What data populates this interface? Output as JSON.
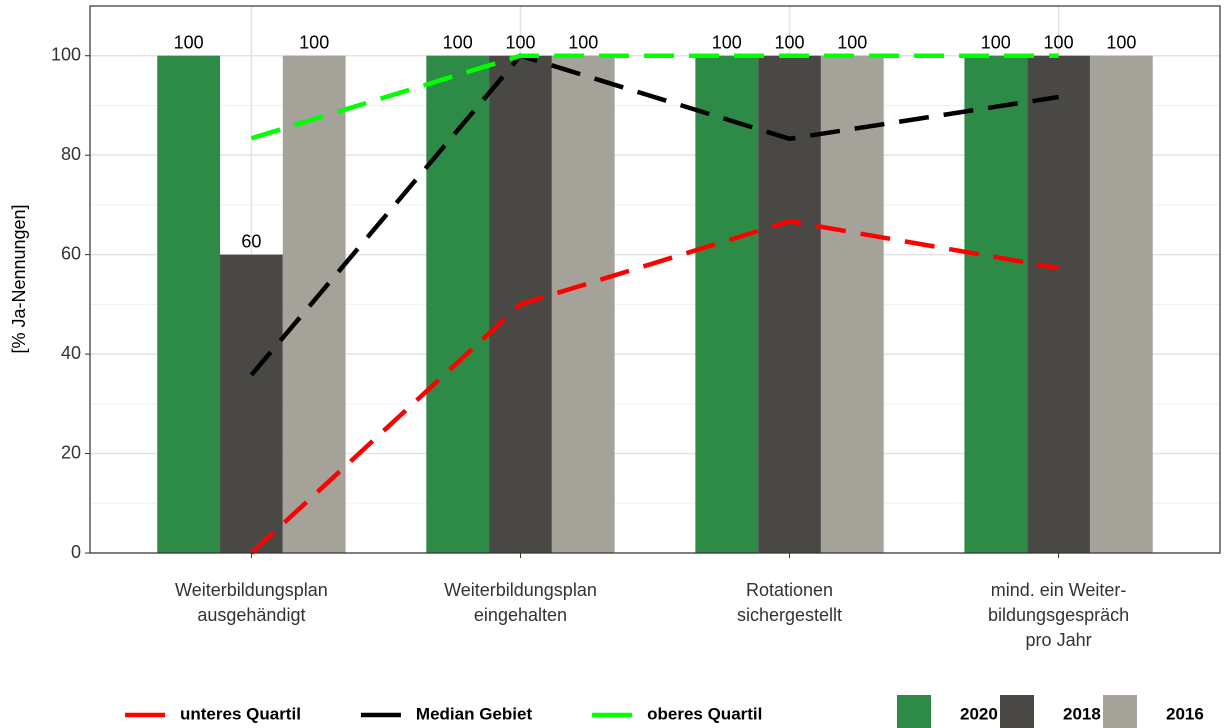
{
  "chart_data": {
    "type": "bar",
    "y_label": "[% Ja-Nennungen]",
    "categories": [
      "Weiterbildungsplan\nausgehändigt",
      "Weiterbildungsplan\neingehalten",
      "Rotationen\nsichergestellt",
      "mind. ein Weiter-\nbildungsgespräch\npro Jahr"
    ],
    "series": [
      {
        "name": "2020",
        "color": "#2e8b47",
        "type": "bar",
        "values": [
          100,
          100,
          100,
          100
        ]
      },
      {
        "name": "2018",
        "color": "#4a4845",
        "type": "bar",
        "values": [
          60,
          100,
          100,
          100
        ]
      },
      {
        "name": "2016",
        "color": "#a5a29a",
        "type": "bar",
        "values": [
          100,
          100,
          100,
          100
        ]
      },
      {
        "name": "unteres Quartil",
        "color": "#ff0000",
        "type": "line",
        "dashed": true,
        "values": [
          0,
          50,
          66.7,
          57.3
        ]
      },
      {
        "name": "Median Gebiet",
        "color": "#000000",
        "type": "line",
        "dashed": true,
        "values": [
          35.8,
          100,
          83.3,
          91.7
        ]
      },
      {
        "name": "oberes Quartil",
        "color": "#00ff00",
        "type": "line",
        "dashed": true,
        "values": [
          83.4,
          100,
          100,
          100
        ]
      }
    ],
    "ylim": [
      0,
      110
    ],
    "yticks": [
      0,
      20,
      40,
      60,
      80,
      100
    ],
    "y_minor_ticks": [
      10,
      30,
      50,
      70,
      90
    ],
    "grid": true,
    "data_labels": true,
    "legend": "bottom"
  }
}
